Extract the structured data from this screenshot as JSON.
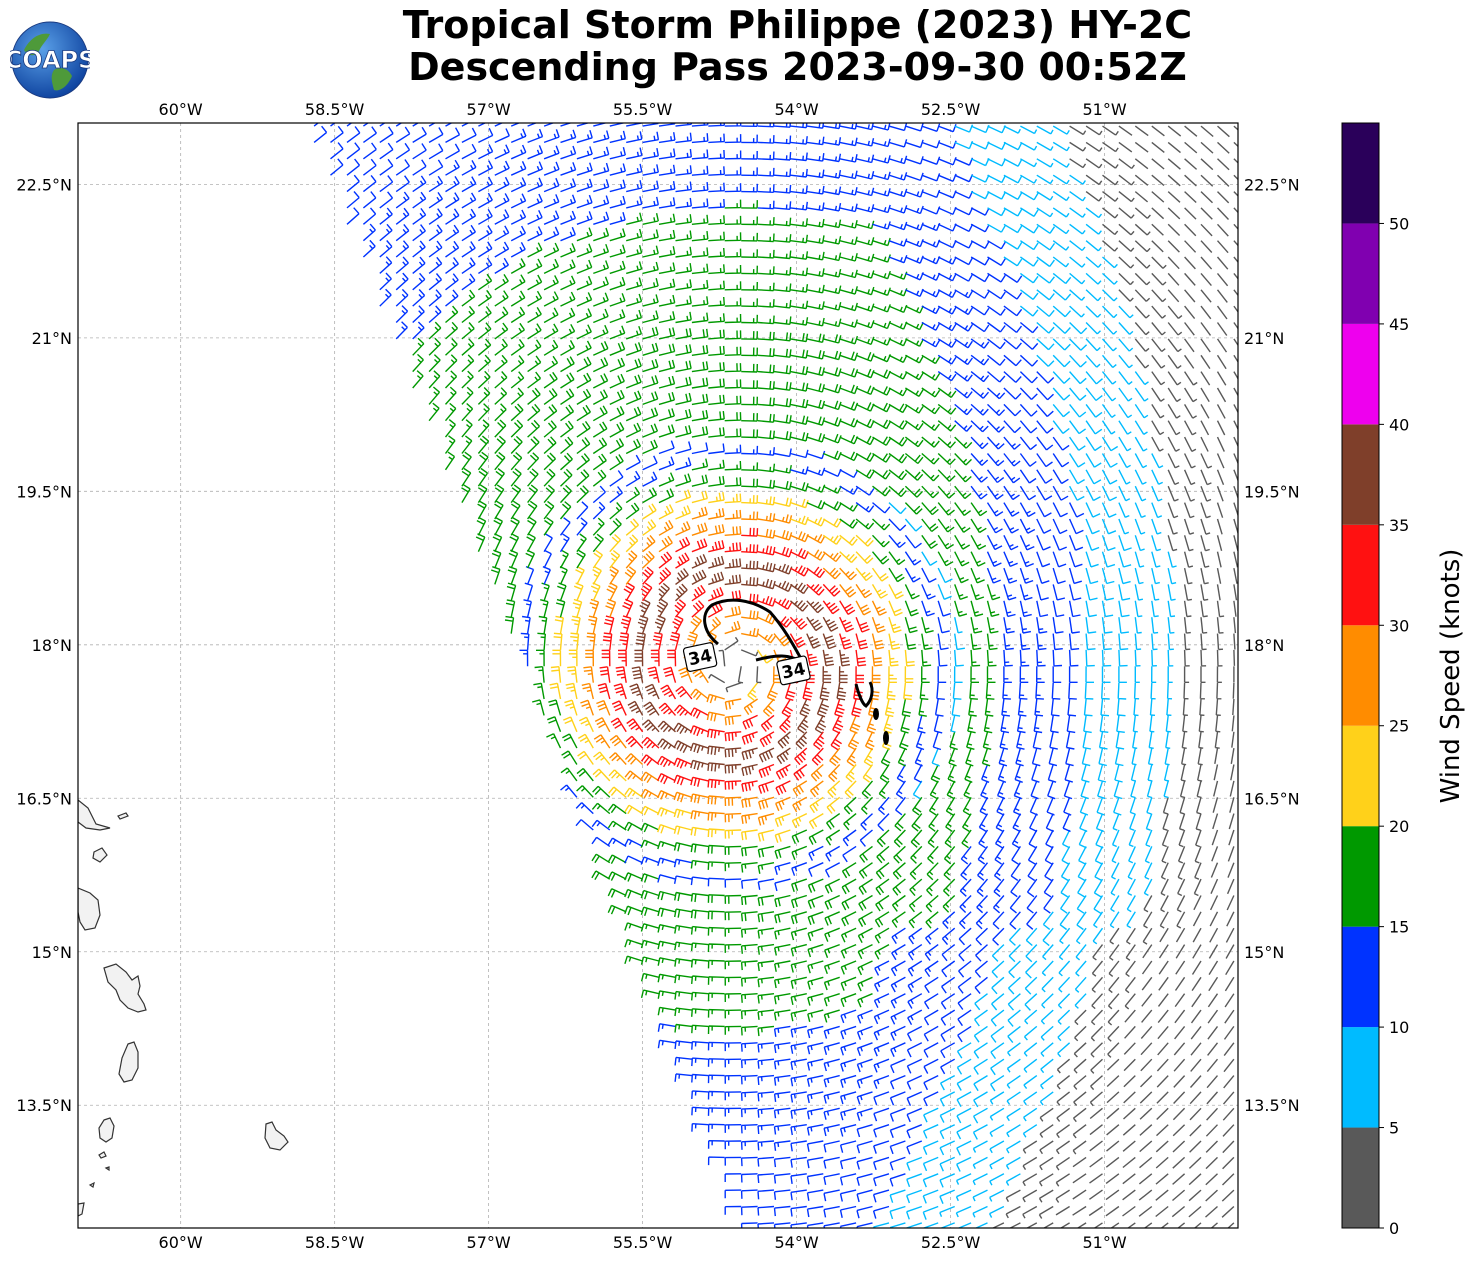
{
  "title": {
    "line1": "Tropical Storm Philippe (2023) HY-2C",
    "line2": "Descending Pass 2023-09-30 00:52Z"
  },
  "logo": {
    "text": "COAPS",
    "icon": "globe-icon"
  },
  "map": {
    "lon_range": [
      -61.0,
      -49.7
    ],
    "lat_range": [
      12.3,
      23.1
    ],
    "lon_ticks": [
      {
        "value": -60,
        "label": "60°W"
      },
      {
        "value": -58.5,
        "label": "58.5°W"
      },
      {
        "value": -57,
        "label": "57°W"
      },
      {
        "value": -55.5,
        "label": "55.5°W"
      },
      {
        "value": -54,
        "label": "54°W"
      },
      {
        "value": -52.5,
        "label": "52.5°W"
      },
      {
        "value": -51,
        "label": "51°W"
      }
    ],
    "lat_ticks": [
      {
        "value": 22.5,
        "label": "22.5°N"
      },
      {
        "value": 21,
        "label": "21°N"
      },
      {
        "value": 19.5,
        "label": "19.5°N"
      },
      {
        "value": 18,
        "label": "18°N"
      },
      {
        "value": 16.5,
        "label": "16.5°N"
      },
      {
        "value": 15,
        "label": "15°N"
      },
      {
        "value": 13.5,
        "label": "13.5°N"
      }
    ],
    "gridlines": true,
    "storm_center": {
      "lon": -54.6,
      "lat": 17.8
    },
    "contour_label": "34",
    "contour_label_positions": [
      {
        "lon": -54.94,
        "lat": 17.88
      },
      {
        "lon": -54.03,
        "lat": 17.75
      }
    ]
  },
  "colorbar": {
    "label": "Wind Speed (knots)",
    "range": [
      0,
      55
    ],
    "ticks": [
      "0",
      "5",
      "10",
      "15",
      "20",
      "25",
      "30",
      "35",
      "40",
      "45",
      "50"
    ],
    "bins": [
      {
        "min": 0,
        "max": 5,
        "color": "#595959"
      },
      {
        "min": 5,
        "max": 10,
        "color": "#00bbff"
      },
      {
        "min": 10,
        "max": 15,
        "color": "#0033ff"
      },
      {
        "min": 15,
        "max": 20,
        "color": "#009900"
      },
      {
        "min": 20,
        "max": 25,
        "color": "#ffd11a"
      },
      {
        "min": 25,
        "max": 30,
        "color": "#ff8c00"
      },
      {
        "min": 30,
        "max": 35,
        "color": "#ff1111"
      },
      {
        "min": 35,
        "max": 40,
        "color": "#7f3f2a"
      },
      {
        "min": 40,
        "max": 45,
        "color": "#ee00ee"
      },
      {
        "min": 45,
        "max": 50,
        "color": "#8000b0"
      },
      {
        "min": 50,
        "max": 55,
        "color": "#2a005a"
      }
    ]
  }
}
